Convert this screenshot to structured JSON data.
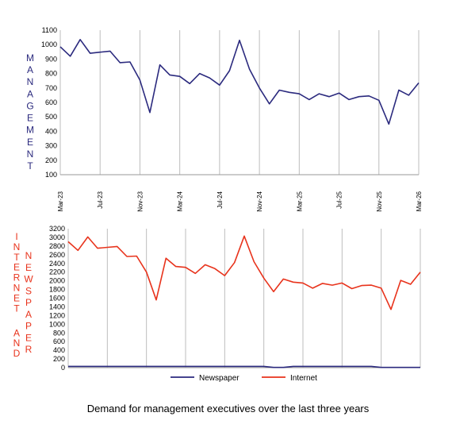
{
  "caption": "Demand for management executives over the last three years",
  "chart_data": [
    {
      "type": "line",
      "ylabel": "MANAGEMENT",
      "ylim": [
        100,
        1100
      ],
      "yticks": [
        100,
        200,
        300,
        400,
        500,
        600,
        700,
        800,
        900,
        1000,
        1100
      ],
      "grid": "vertical",
      "x_tick_labels": [
        "Mar-23",
        "Jul-23",
        "Nov-23",
        "Mar-24",
        "Jul-24",
        "Nov-24",
        "Mar-25",
        "Jul-25",
        "Nov-25",
        "Mar-26"
      ],
      "series": [
        {
          "color": "#2b2a7e",
          "values": [
            985,
            920,
            1035,
            940,
            948,
            955,
            875,
            880,
            755,
            530,
            860,
            790,
            780,
            730,
            800,
            770,
            720,
            820,
            1030,
            830,
            700,
            590,
            685,
            670,
            660,
            620,
            660,
            640,
            665,
            620,
            640,
            645,
            615,
            450,
            685,
            650,
            735
          ]
        }
      ]
    },
    {
      "type": "line",
      "ylabel_left": "INTERNET AND",
      "ylabel_right": "NEWSPAPER",
      "ylim": [
        0,
        3200
      ],
      "yticks": [
        0,
        200,
        400,
        600,
        800,
        1000,
        1200,
        1400,
        1600,
        1800,
        2000,
        2200,
        2400,
        2600,
        2800,
        3000,
        3200
      ],
      "grid": "vertical",
      "legend_position": "bottom",
      "series": [
        {
          "name": "Newspaper",
          "color": "#2b2a7e",
          "values": [
            30,
            30,
            30,
            30,
            30,
            30,
            30,
            30,
            30,
            30,
            30,
            30,
            30,
            30,
            30,
            30,
            30,
            30,
            30,
            30,
            30,
            5,
            5,
            30,
            30,
            30,
            30,
            30,
            30,
            30,
            30,
            30,
            5,
            5,
            5,
            5,
            5
          ]
        },
        {
          "name": "Internet",
          "color": "#e8331c",
          "values": [
            2900,
            2700,
            3010,
            2750,
            2770,
            2790,
            2560,
            2570,
            2200,
            1560,
            2520,
            2330,
            2310,
            2170,
            2370,
            2280,
            2120,
            2420,
            3030,
            2440,
            2060,
            1750,
            2040,
            1970,
            1950,
            1830,
            1940,
            1900,
            1950,
            1820,
            1890,
            1900,
            1830,
            1340,
            2010,
            1920,
            2200
          ]
        }
      ]
    }
  ]
}
